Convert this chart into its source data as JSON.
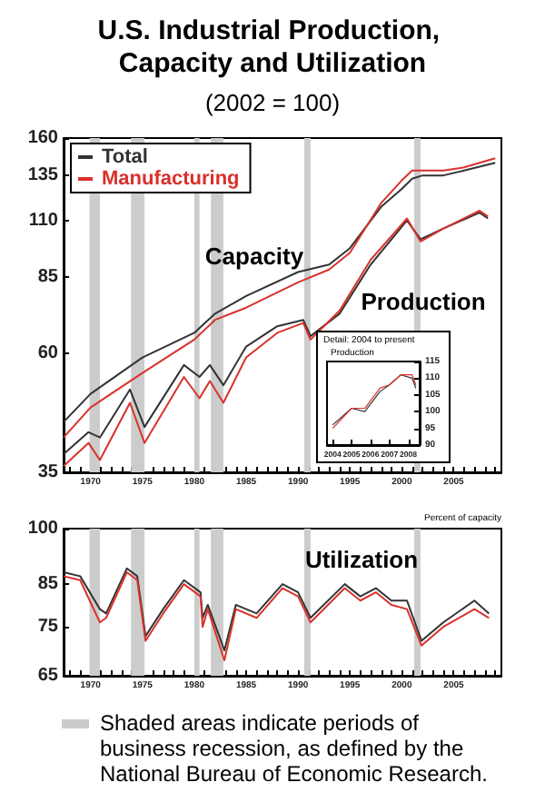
{
  "chart_data": [
    {
      "type": "line",
      "title": "U.S. Industrial Production, Capacity and Utilization",
      "subtitle": "(2002 = 100)",
      "log": "y",
      "legend": "top left",
      "xlim": [
        1967.4,
        2009.6
      ],
      "ylim": [
        35,
        160
      ],
      "yticks": [
        35,
        60,
        85,
        110,
        135,
        160
      ],
      "xticks": [
        {
          "value": 1968,
          "label": null
        },
        {
          "value": 1969,
          "label": null
        },
        1970,
        {
          "value": 1971,
          "label": null
        },
        {
          "value": 1972,
          "label": null
        },
        {
          "value": 1973,
          "label": null
        },
        {
          "value": 1974,
          "label": null
        },
        1975,
        {
          "value": 1976,
          "label": null
        },
        {
          "value": 1977,
          "label": null
        },
        {
          "value": 1978,
          "label": null
        },
        {
          "value": 1979,
          "label": null
        },
        1980,
        {
          "value": 1981,
          "label": null
        },
        {
          "value": 1982,
          "label": null
        },
        {
          "value": 1983,
          "label": null
        },
        {
          "value": 1984,
          "label": null
        },
        1985,
        {
          "value": 1986,
          "label": null
        },
        {
          "value": 1987,
          "label": null
        },
        {
          "value": 1988,
          "label": null
        },
        {
          "value": 1989,
          "label": null
        },
        1990,
        {
          "value": 1991,
          "label": null
        },
        {
          "value": 1992,
          "label": null
        },
        {
          "value": 1993,
          "label": null
        },
        {
          "value": 1994,
          "label": null
        },
        1995,
        {
          "value": 1996,
          "label": null
        },
        {
          "value": 1997,
          "label": null
        },
        {
          "value": 1998,
          "label": null
        },
        {
          "value": 1999,
          "label": null
        },
        2000,
        {
          "value": 2001,
          "label": null
        },
        {
          "value": 2002,
          "label": null
        },
        {
          "value": 2003,
          "label": null
        },
        {
          "value": 2004,
          "label": null
        },
        2005,
        {
          "value": 2006,
          "label": null
        },
        {
          "value": 2007,
          "label": null
        },
        {
          "value": 2008,
          "label": null
        },
        {
          "value": 2009,
          "label": null
        }
      ],
      "series": [
        {
          "name": "Total",
          "color": "#333333",
          "x": [
            1967.4,
            1970,
            1975,
            1980,
            1982,
            1985,
            1990,
            1993,
            1995,
            1998,
            2000,
            2001,
            2002,
            2004,
            2006,
            2009
          ],
          "values": [
            44,
            50,
            59,
            66,
            72,
            78,
            87,
            90,
            97,
            117,
            127,
            133,
            135,
            135,
            138,
            143
          ]
        },
        {
          "name": "Manufacturing",
          "color": "#d9312b",
          "x": [
            1967.4,
            1970,
            1975,
            1980,
            1982,
            1985,
            1990,
            1993,
            1995,
            1998,
            2000,
            2001,
            2002,
            2004,
            2006,
            2009
          ],
          "values": [
            41,
            47,
            55,
            64,
            70,
            74,
            83,
            88,
            95,
            119,
            132,
            138,
            138,
            138,
            140,
            146
          ]
        },
        {
          "color": "#333333",
          "x": [
            1967.4,
            1969.8,
            1970.9,
            1973.8,
            1975.2,
            1979,
            1980.5,
            1981.5,
            1982.8,
            1985,
            1988,
            1990.5,
            1991.2,
            1994,
            1997,
            2000.5,
            2001.8,
            2004,
            2007.5,
            2008.3
          ],
          "values": [
            38,
            42,
            41,
            51,
            43,
            57,
            54,
            57,
            52,
            62,
            68,
            70,
            65,
            72,
            90,
            110,
            101,
            106,
            114,
            111
          ]
        },
        {
          "color": "#d9312b",
          "x": [
            1967.4,
            1969.8,
            1970.9,
            1973.8,
            1975.2,
            1979,
            1980.5,
            1981.5,
            1982.8,
            1985,
            1988,
            1990.5,
            1991.2,
            1994,
            1997,
            2000.5,
            2001.8,
            2004,
            2007.5,
            2008.3
          ],
          "values": [
            36,
            40,
            37,
            48,
            40,
            54,
            49,
            53,
            48,
            59,
            66,
            69,
            64,
            73,
            92,
            111,
            100,
            106,
            115,
            112
          ]
        }
      ],
      "bands": [
        {
          "axis": "x",
          "from": 1969.9,
          "to": 1970.9,
          "color": "#cccccc"
        },
        {
          "axis": "x",
          "from": 1973.9,
          "to": 1975.2,
          "color": "#cccccc"
        },
        {
          "axis": "x",
          "from": 1980.0,
          "to": 1980.5,
          "color": "#cccccc"
        },
        {
          "axis": "x",
          "from": 1981.6,
          "to": 1982.8,
          "color": "#cccccc"
        },
        {
          "axis": "x",
          "from": 1990.6,
          "to": 1991.2,
          "color": "#cccccc"
        },
        {
          "axis": "x",
          "from": 2001.2,
          "to": 2001.8,
          "color": "#cccccc"
        }
      ],
      "annotations": [
        "Capacity",
        "Production"
      ]
    },
    {
      "type": "line",
      "ylabel": "Percent of capacity",
      "log": "y",
      "xlim": [
        1967.4,
        2009.6
      ],
      "ylim": [
        65,
        100
      ],
      "yticks": [
        65,
        75,
        85,
        100
      ],
      "xticks": [
        {
          "value": 1968,
          "label": null
        },
        {
          "value": 1969,
          "label": null
        },
        1970,
        {
          "value": 1971,
          "label": null
        },
        {
          "value": 1972,
          "label": null
        },
        {
          "value": 1973,
          "label": null
        },
        {
          "value": 1974,
          "label": null
        },
        1975,
        {
          "value": 1976,
          "label": null
        },
        {
          "value": 1977,
          "label": null
        },
        {
          "value": 1978,
          "label": null
        },
        {
          "value": 1979,
          "label": null
        },
        1980,
        {
          "value": 1981,
          "label": null
        },
        {
          "value": 1982,
          "label": null
        },
        {
          "value": 1983,
          "label": null
        },
        {
          "value": 1984,
          "label": null
        },
        1985,
        {
          "value": 1986,
          "label": null
        },
        {
          "value": 1987,
          "label": null
        },
        {
          "value": 1988,
          "label": null
        },
        {
          "value": 1989,
          "label": null
        },
        1990,
        {
          "value": 1991,
          "label": null
        },
        {
          "value": 1992,
          "label": null
        },
        {
          "value": 1993,
          "label": null
        },
        {
          "value": 1994,
          "label": null
        },
        1995,
        {
          "value": 1996,
          "label": null
        },
        {
          "value": 1997,
          "label": null
        },
        {
          "value": 1998,
          "label": null
        },
        {
          "value": 1999,
          "label": null
        },
        2000,
        {
          "value": 2001,
          "label": null
        },
        {
          "value": 2002,
          "label": null
        },
        {
          "value": 2003,
          "label": null
        },
        {
          "value": 2004,
          "label": null
        },
        2005,
        {
          "value": 2006,
          "label": null
        },
        {
          "value": 2007,
          "label": null
        },
        {
          "value": 2008,
          "label": null
        },
        {
          "value": 2009,
          "label": null
        }
      ],
      "series": [
        {
          "color": "#333333",
          "x": [
            1967.4,
            1969,
            1970.9,
            1971.5,
            1973.5,
            1974.5,
            1975.3,
            1977,
            1979,
            1980.6,
            1980.8,
            1981.3,
            1982.9,
            1984,
            1986,
            1988.5,
            1990,
            1991.2,
            1994.5,
            1996,
            1997.5,
            1999,
            2000.5,
            2001.9,
            2004,
            2007,
            2008.4
          ],
          "values": [
            88,
            87,
            79,
            78,
            89,
            87,
            73,
            79,
            86,
            83,
            77,
            80,
            70,
            80,
            78,
            85,
            83,
            77,
            85,
            82,
            84,
            81,
            81,
            72,
            76,
            81,
            78
          ]
        },
        {
          "color": "#d9312b",
          "x": [
            1967.4,
            1969,
            1970.9,
            1971.5,
            1973.5,
            1974.5,
            1975.3,
            1977,
            1979,
            1980.6,
            1980.8,
            1981.3,
            1982.9,
            1984,
            1986,
            1988.5,
            1990,
            1991.2,
            1994.5,
            1996,
            1997.5,
            1999,
            2000.5,
            2001.9,
            2004,
            2007,
            2008.4
          ],
          "values": [
            87,
            86,
            76,
            77,
            88,
            86,
            72,
            78,
            85,
            82,
            75,
            79,
            68,
            79,
            77,
            84,
            82,
            76,
            84,
            81,
            83,
            80,
            79,
            71,
            75,
            79,
            77
          ]
        }
      ],
      "bands": [
        {
          "axis": "x",
          "from": 1969.9,
          "to": 1970.9,
          "color": "#cccccc"
        },
        {
          "axis": "x",
          "from": 1973.9,
          "to": 1975.2,
          "color": "#cccccc"
        },
        {
          "axis": "x",
          "from": 1980.0,
          "to": 1980.5,
          "color": "#cccccc"
        },
        {
          "axis": "x",
          "from": 1981.6,
          "to": 1982.8,
          "color": "#cccccc"
        },
        {
          "axis": "x",
          "from": 1990.6,
          "to": 1991.2,
          "color": "#cccccc"
        },
        {
          "axis": "x",
          "from": 2001.2,
          "to": 2001.8,
          "color": "#cccccc"
        }
      ],
      "annotations": [
        "Utilization",
        "Shaded areas indicate periods of business recession, as defined by the National Bureau of Economic Research."
      ]
    },
    {
      "type": "line",
      "title": "Detail: 2004 to present",
      "ylabel": "Production",
      "xlim": [
        2003.7,
        2008.6
      ],
      "ylim": [
        90,
        115
      ],
      "xticks": [
        2004,
        2005,
        2006,
        2007,
        2008
      ],
      "yticks": [
        90,
        95,
        100,
        105,
        110,
        115
      ],
      "series": [
        {
          "color": "#333333",
          "x": [
            2004,
            2005,
            2005.7,
            2006.5,
            2007,
            2007.6,
            2008.2,
            2008.4
          ],
          "values": [
            96,
            101,
            100,
            106,
            108,
            111,
            110,
            107
          ]
        },
        {
          "color": "#d9312b",
          "x": [
            2004,
            2005,
            2005.7,
            2006.5,
            2007,
            2007.6,
            2008.2,
            2008.4
          ],
          "values": [
            95,
            101,
            101,
            107,
            108,
            111,
            111,
            108
          ]
        }
      ]
    }
  ]
}
